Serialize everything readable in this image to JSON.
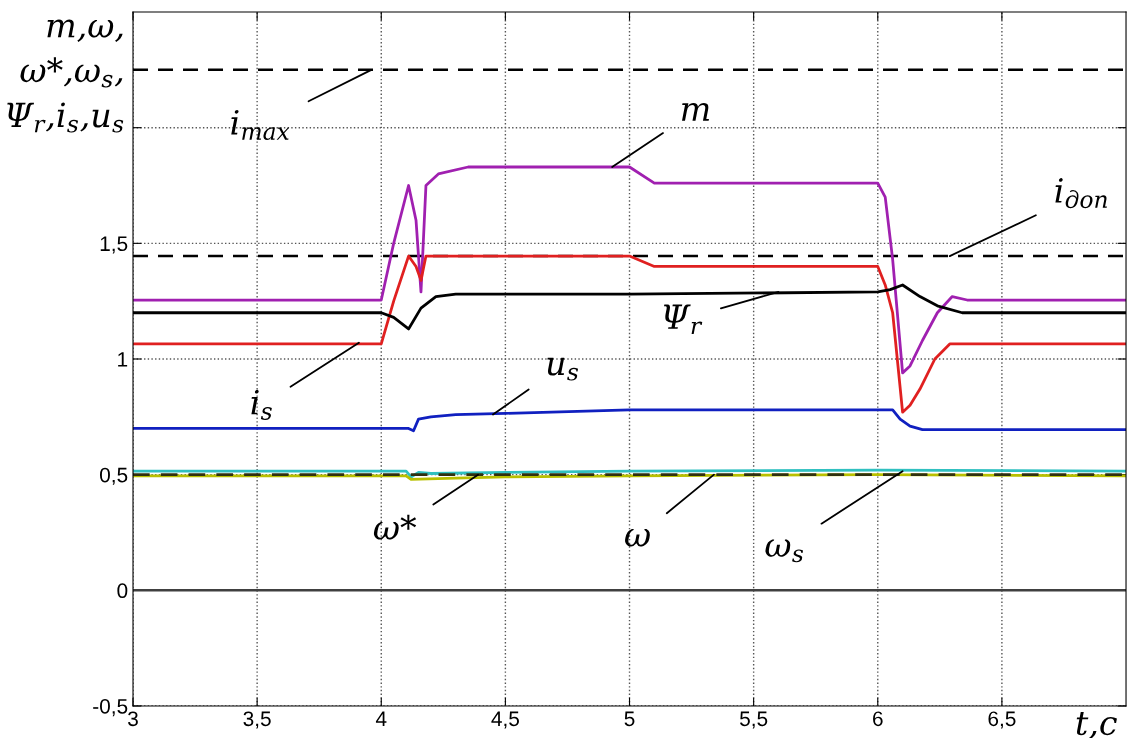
{
  "chart_data": {
    "type": "line",
    "xlabel": "t,c",
    "ylabel": "m,ω,\nω*,ω$_{s}$,\nΨ$_{r}$,i$_{s}$,u$_{s}$",
    "xlim": [
      3,
      7
    ],
    "ylim": [
      -0.5,
      2.5
    ],
    "xticks": [
      3,
      {
        "value": 3.5,
        "label": "3,5"
      },
      4,
      {
        "value": 4.5,
        "label": "4,5"
      },
      5,
      {
        "value": 5.5,
        "label": "5,5"
      },
      6,
      {
        "value": 6.5,
        "label": "6,5"
      }
    ],
    "yticks": [
      {
        "value": -0.5,
        "label": "-0,5"
      },
      0,
      {
        "value": 0.5,
        "label": "0,5"
      },
      1,
      {
        "value": 1.5,
        "label": "1,5"
      },
      {
        "value": 2,
        "label": null
      }
    ],
    "grid": true,
    "line_style": "solid",
    "marker": "none",
    "series": [
      {
        "color": "#a020b0",
        "x": [
          3,
          4.0,
          4.05,
          4.11,
          4.14,
          4.16,
          4.18,
          4.23,
          4.35,
          5.0,
          5.1,
          6.0,
          6.03,
          6.06,
          6.1,
          6.13,
          6.18,
          6.24,
          6.3,
          6.36,
          7
        ],
        "values": [
          1.255,
          1.255,
          1.5,
          1.75,
          1.6,
          1.29,
          1.75,
          1.8,
          1.83,
          1.83,
          1.76,
          1.76,
          1.7,
          1.43,
          0.94,
          0.97,
          1.08,
          1.2,
          1.27,
          1.255,
          1.255
        ]
      },
      {
        "color": "#e02020",
        "x": [
          3,
          4.0,
          4.05,
          4.11,
          4.14,
          4.16,
          4.18,
          4.22,
          5.0,
          5.1,
          6.0,
          6.03,
          6.06,
          6.1,
          6.13,
          6.17,
          6.23,
          6.29,
          7
        ],
        "values": [
          1.065,
          1.065,
          1.25,
          1.445,
          1.4,
          1.34,
          1.445,
          1.445,
          1.445,
          1.4,
          1.4,
          1.32,
          1.2,
          0.77,
          0.8,
          0.87,
          1.0,
          1.065,
          1.065
        ]
      },
      {
        "color": "#000000",
        "x": [
          3,
          4.0,
          4.05,
          4.11,
          4.16,
          4.22,
          4.3,
          5.0,
          6.0,
          6.05,
          6.1,
          6.17,
          6.24,
          6.34,
          7
        ],
        "values": [
          1.2,
          1.2,
          1.18,
          1.13,
          1.22,
          1.27,
          1.28,
          1.28,
          1.29,
          1.3,
          1.32,
          1.27,
          1.23,
          1.2,
          1.2
        ]
      },
      {
        "color": "#1020c0",
        "x": [
          3,
          4.0,
          4.11,
          4.13,
          4.15,
          4.2,
          4.3,
          4.5,
          5.0,
          6.0,
          6.06,
          6.09,
          6.13,
          6.18,
          7
        ],
        "values": [
          0.7,
          0.7,
          0.7,
          0.69,
          0.74,
          0.75,
          0.76,
          0.765,
          0.78,
          0.78,
          0.78,
          0.74,
          0.71,
          0.695,
          0.695
        ]
      },
      {
        "color": "#30c0c0",
        "x": [
          3,
          4.1,
          4.12,
          4.15,
          4.2,
          4.5,
          5.0,
          6.0,
          7
        ],
        "values": [
          0.515,
          0.515,
          0.49,
          0.51,
          0.505,
          0.51,
          0.515,
          0.52,
          0.515
        ]
      },
      {
        "color": "#b8c000",
        "x": [
          3,
          4.1,
          4.12,
          4.3,
          4.5,
          5.0,
          6.0,
          7
        ],
        "values": [
          0.495,
          0.495,
          0.48,
          0.485,
          0.49,
          0.495,
          0.5,
          0.495
        ]
      },
      {
        "color": "#303010",
        "line_style": "dashed",
        "x": [
          3,
          7
        ],
        "values": [
          0.5,
          0.5
        ]
      }
    ],
    "ref_lines": [
      {
        "axis": "y",
        "value": 2.25,
        "color": "#000000",
        "line_style": "dashed"
      },
      {
        "axis": "y",
        "value": 1.445,
        "color": "#000000",
        "line_style": "dashed"
      },
      {
        "axis": "y",
        "value": 0,
        "color": "#404040",
        "line_style": "solid"
      }
    ],
    "annotations": [
      {
        "text": "i$_{max}$",
        "x": 3.96,
        "y": 2.25
      },
      {
        "text": "m",
        "x": 4.93,
        "y": 1.83
      },
      {
        "text": "i$_{доп}$",
        "x": 6.29,
        "y": 1.445
      },
      {
        "text": "Ψ$_{r}$",
        "x": 5.6,
        "y": 1.29
      },
      {
        "text": "i$_{s}$",
        "x": 3.91,
        "y": 1.07
      },
      {
        "text": "u$_{s}$",
        "x": 4.45,
        "y": 0.76
      },
      {
        "text": "ω*",
        "x": 4.39,
        "y": 0.5
      },
      {
        "text": "ω",
        "x": 5.34,
        "y": 0.5
      },
      {
        "text": "ω$_{s}$",
        "x": 6.1,
        "y": 0.515
      }
    ]
  }
}
